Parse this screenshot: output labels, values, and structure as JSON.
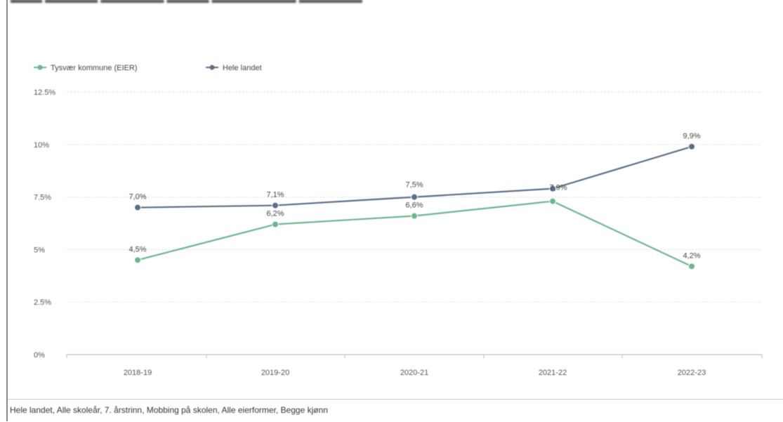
{
  "footer": {
    "text": "Hele landet, Alle skoleår, 7. årstrinn, Mobbing på skolen, Alle eierformer, Begge kjønn"
  },
  "colors": {
    "series_green": "#6cb58f",
    "series_blue": "#5a6f88",
    "grid": "#e6e6e6",
    "axis": "#bdbdbd"
  },
  "chart_data": {
    "type": "line",
    "title": "",
    "xlabel": "",
    "ylabel": "",
    "categories": [
      "2018-19",
      "2019-20",
      "2020-21",
      "2021-22",
      "2022-23"
    ],
    "ylim": [
      0,
      12.5
    ],
    "y_ticks": [
      0,
      2.5,
      5,
      7.5,
      10,
      12.5
    ],
    "y_tick_labels": [
      "0%",
      "2.5%",
      "5%",
      "7.5%",
      "10%",
      "12.5%"
    ],
    "grid": true,
    "legend_position": "top-left",
    "series": [
      {
        "name": "Tysvær kommune (EIER)",
        "color": "#6cb58f",
        "values": [
          4.5,
          6.2,
          6.6,
          7.3,
          4.2
        ],
        "labels": [
          "4,5%",
          "6,2%",
          "6,6%",
          "",
          "4,2%"
        ]
      },
      {
        "name": "Hele landet",
        "color": "#5a6f88",
        "values": [
          7.0,
          7.1,
          7.5,
          7.9,
          9.9
        ],
        "labels": [
          "7,0%",
          "7,1%",
          "7,5%",
          "7,9%",
          "9,9%"
        ]
      }
    ]
  }
}
